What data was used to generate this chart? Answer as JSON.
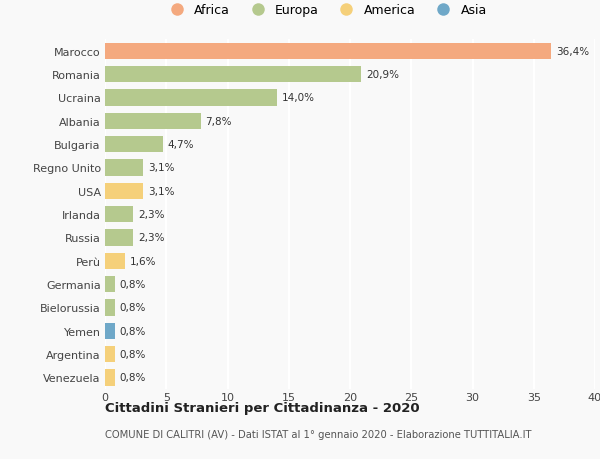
{
  "countries": [
    "Marocco",
    "Romania",
    "Ucraina",
    "Albania",
    "Bulgaria",
    "Regno Unito",
    "USA",
    "Irlanda",
    "Russia",
    "Perù",
    "Germania",
    "Bielorussia",
    "Yemen",
    "Argentina",
    "Venezuela"
  ],
  "values": [
    36.4,
    20.9,
    14.0,
    7.8,
    4.7,
    3.1,
    3.1,
    2.3,
    2.3,
    1.6,
    0.8,
    0.8,
    0.8,
    0.8,
    0.8
  ],
  "labels": [
    "36,4%",
    "20,9%",
    "14,0%",
    "7,8%",
    "4,7%",
    "3,1%",
    "3,1%",
    "2,3%",
    "2,3%",
    "1,6%",
    "0,8%",
    "0,8%",
    "0,8%",
    "0,8%",
    "0,8%"
  ],
  "continents": [
    "Africa",
    "Europa",
    "Europa",
    "Europa",
    "Europa",
    "Europa",
    "America",
    "Europa",
    "Europa",
    "America",
    "Europa",
    "Europa",
    "Asia",
    "America",
    "America"
  ],
  "colors": {
    "Africa": "#F4A97F",
    "Europa": "#B5C98E",
    "America": "#F5D07A",
    "Asia": "#6FA8C8"
  },
  "legend_order": [
    "Africa",
    "Europa",
    "America",
    "Asia"
  ],
  "title": "Cittadini Stranieri per Cittadinanza - 2020",
  "subtitle": "COMUNE DI CALITRI (AV) - Dati ISTAT al 1° gennaio 2020 - Elaborazione TUTTITALIA.IT",
  "xlim": [
    0,
    40
  ],
  "xticks": [
    0,
    5,
    10,
    15,
    20,
    25,
    30,
    35,
    40
  ],
  "bg_color": "#f9f9f9",
  "grid_color": "#ffffff",
  "bar_height": 0.7
}
